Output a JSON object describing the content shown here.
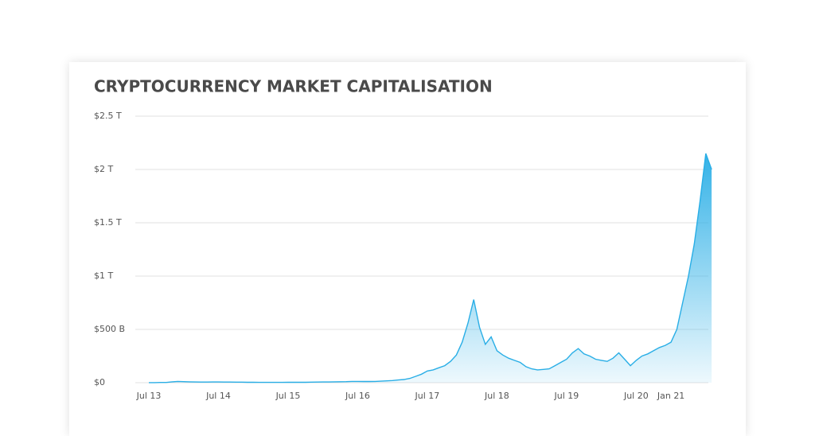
{
  "chart_data": {
    "type": "area",
    "title": "CRYPTOCURRENCY MARKET CAPITALISATION",
    "categories": [
      "Jul 13",
      null,
      null,
      null,
      null,
      null,
      null,
      null,
      null,
      null,
      null,
      null,
      "Jul 14",
      null,
      null,
      null,
      null,
      null,
      null,
      null,
      null,
      null,
      null,
      null,
      "Jul 15",
      null,
      null,
      null,
      null,
      null,
      null,
      null,
      null,
      null,
      null,
      null,
      "Jul 16",
      null,
      null,
      null,
      null,
      null,
      null,
      null,
      null,
      null,
      null,
      null,
      "Jul 17",
      null,
      null,
      null,
      null,
      null,
      null,
      null,
      null,
      null,
      null,
      null,
      "Jul 18",
      null,
      null,
      null,
      null,
      null,
      null,
      null,
      null,
      null,
      null,
      null,
      "Jul 19",
      null,
      null,
      null,
      null,
      null,
      null,
      null,
      null,
      null,
      null,
      null,
      "Jul 20",
      null,
      null,
      null,
      null,
      null,
      "Jan 21",
      null,
      null,
      null,
      null,
      null,
      null,
      null
    ],
    "values": [
      1,
      1,
      2,
      2,
      8,
      12,
      10,
      8,
      7,
      6,
      6,
      7,
      7,
      6,
      6,
      5,
      5,
      4,
      4,
      3,
      3,
      3,
      3,
      3,
      4,
      4,
      4,
      4,
      5,
      6,
      7,
      7,
      8,
      9,
      10,
      12,
      12,
      11,
      11,
      12,
      14,
      17,
      20,
      25,
      30,
      40,
      60,
      80,
      110,
      120,
      140,
      160,
      200,
      260,
      380,
      560,
      780,
      520,
      360,
      430,
      300,
      260,
      230,
      210,
      190,
      150,
      130,
      120,
      125,
      130,
      160,
      190,
      220,
      280,
      320,
      270,
      250,
      220,
      210,
      200,
      230,
      280,
      220,
      160,
      210,
      250,
      270,
      300,
      330,
      350,
      380,
      500,
      750,
      1000,
      1300,
      1700,
      2150,
      2000
    ],
    "color": "#29aee6",
    "ylim": [
      0,
      2500
    ],
    "yticks": [
      {
        "value": 0,
        "label": "$0"
      },
      {
        "value": 500,
        "label": "$500 B"
      },
      {
        "value": 1000,
        "label": "$1 T"
      },
      {
        "value": 1500,
        "label": "$1.5 T"
      },
      {
        "value": 2000,
        "label": "$2 T"
      },
      {
        "value": 2500,
        "label": "$2.5 T"
      }
    ],
    "grid": true
  }
}
